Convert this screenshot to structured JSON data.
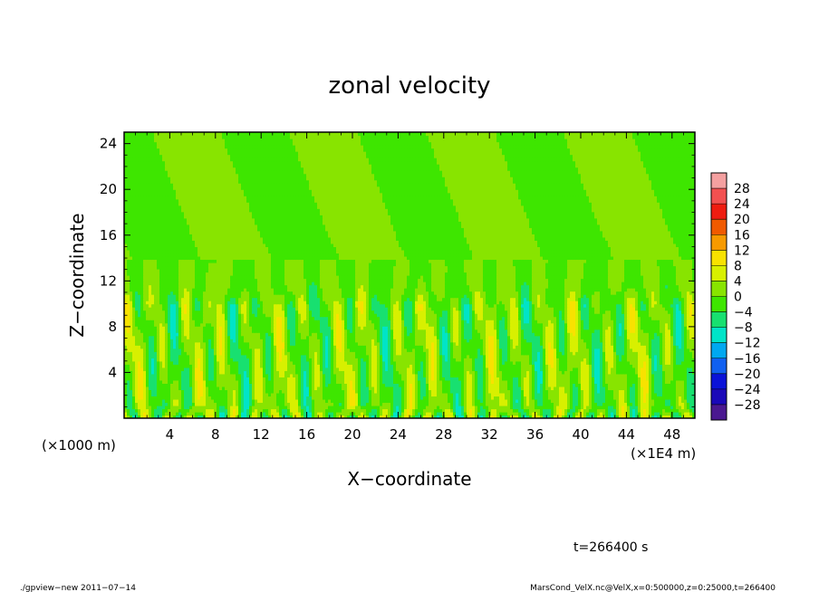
{
  "chart_data": {
    "type": "heatmap",
    "title": "zonal velocity",
    "xlabel": "X−coordinate",
    "ylabel": "Z−coordinate",
    "xlim": [
      0,
      50
    ],
    "ylim": [
      0,
      25
    ],
    "x_ticks": [
      4,
      8,
      12,
      16,
      20,
      24,
      28,
      32,
      36,
      40,
      44,
      48
    ],
    "y_ticks": [
      4,
      8,
      12,
      16,
      20,
      24
    ],
    "x_scale_left": "(×1000 m)",
    "x_scale_right": "(×1E4 m)",
    "colorbar": {
      "levels": [
        28,
        24,
        20,
        16,
        12,
        8,
        4,
        0,
        -4,
        -8,
        -12,
        -16,
        -20,
        -24,
        -28
      ],
      "labels": [
        "28",
        "24",
        "20",
        "16",
        "12",
        "8",
        "4",
        "0",
        "−4",
        "−8",
        "−12",
        "−16",
        "−20",
        "−24",
        "−28"
      ],
      "colors": [
        "#f4a0a0",
        "#f25050",
        "#ee1c10",
        "#f05a00",
        "#f79a00",
        "#f8e200",
        "#d8f000",
        "#88e400",
        "#3ee600",
        "#18e070",
        "#00e4c8",
        "#00a8f0",
        "#1060f0",
        "#0a12d8",
        "#1a08b8",
        "#4a1890"
      ]
    },
    "field_summary": "bands of alternating positive and negative zonal velocity below z≈10, near zero above"
  },
  "time_label": "t=266400 s",
  "footer": {
    "left": "./gpview−new  2011−07−14",
    "right": "MarsCond_VelX.nc@VelX,x=0:500000,z=0:25000,t=266400"
  }
}
